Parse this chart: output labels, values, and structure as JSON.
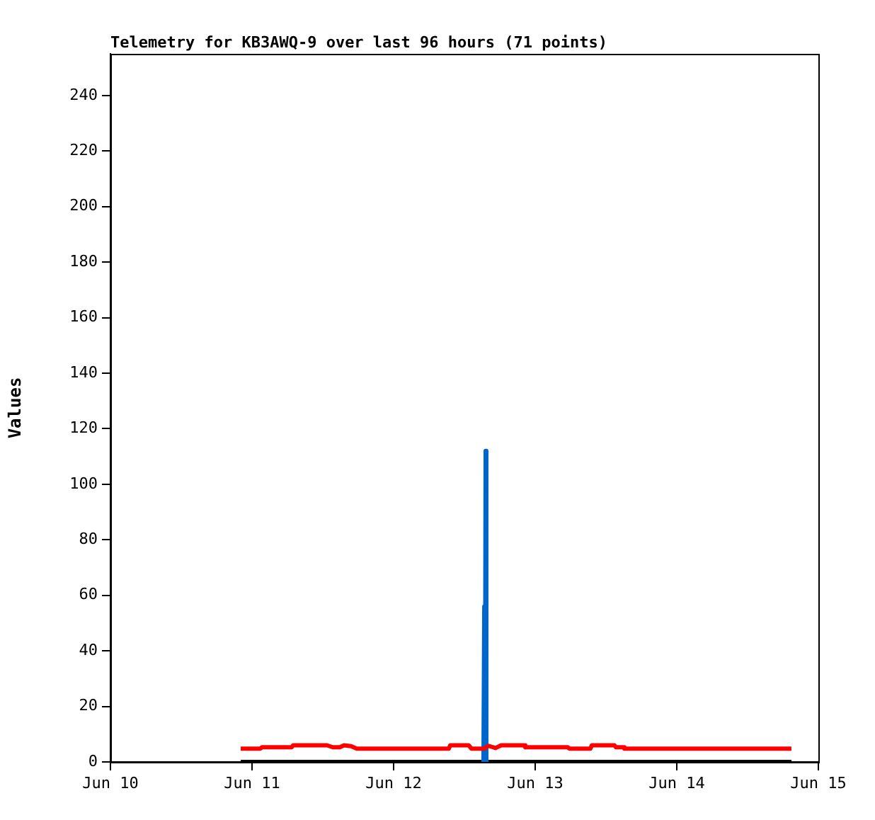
{
  "chart_data": {
    "type": "line",
    "title": "Telemetry for KB3AWQ-9 over last 96 hours (71 points)",
    "ylabel": "Values",
    "xlim": [
      "--06-10",
      "--06-15"
    ],
    "xticks": [
      {
        "value": "--06-10",
        "label": "Jun 10"
      },
      {
        "value": "--06-11",
        "label": "Jun 11"
      },
      {
        "value": "--06-12",
        "label": "Jun 12"
      },
      {
        "value": "--06-13",
        "label": "Jun 13"
      },
      {
        "value": "--06-14",
        "label": "Jun 14"
      },
      {
        "value": "--06-15",
        "label": "Jun 15"
      }
    ],
    "ylim": [
      0,
      255
    ],
    "yticks": [
      0,
      20,
      40,
      60,
      80,
      100,
      120,
      140,
      160,
      180,
      200,
      220,
      240
    ],
    "grid": false,
    "legend": false,
    "marker": "none",
    "line_style": "solid",
    "series": [
      {
        "color": "#ff0000",
        "x": [
          "--06-10T22:05",
          "--06-11T01:26",
          "--06-11T01:41",
          "--06-11T06:43",
          "--06-11T06:58",
          "--06-11T12:43",
          "--06-11T13:41",
          "--06-11T14:53",
          "--06-11T15:36",
          "--06-11T16:48",
          "--06-11T17:46",
          "--06-12T09:22",
          "--06-12T09:36",
          "--06-12T12:43",
          "--06-12T13:12",
          "--06-12T15:22",
          "--06-12T16:05",
          "--06-12T17:17",
          "--06-12T18:14",
          "--06-12T22:05",
          "--06-12T22:19",
          "--06-13T05:31",
          "--06-13T05:46",
          "--06-13T09:22",
          "--06-13T09:36",
          "--06-13T13:26",
          "--06-13T13:41",
          "--06-13T14:53",
          "--06-13T15:07",
          "--06-14T19:26"
        ],
        "values": [
          4.8,
          4.8,
          5.3,
          5.3,
          6,
          6,
          5.3,
          5.3,
          6,
          5.7,
          4.8,
          4.8,
          6,
          6,
          4.8,
          4.8,
          5.8,
          5,
          6,
          6,
          5.3,
          5.3,
          4.8,
          4.8,
          6,
          6,
          5.3,
          5.3,
          4.8,
          4.8
        ]
      },
      {
        "color": "#0066cc",
        "x": [
          "--06-12T15:14",
          "--06-12T15:22",
          "--06-12T15:29",
          "--06-12T15:36",
          "--06-12T15:43"
        ],
        "values": [
          0,
          56,
          0,
          112,
          0
        ]
      },
      {
        "color": "#000000",
        "x": [
          "--06-10T22:05",
          "--06-14T19:26"
        ],
        "values": [
          0,
          0
        ]
      }
    ]
  }
}
